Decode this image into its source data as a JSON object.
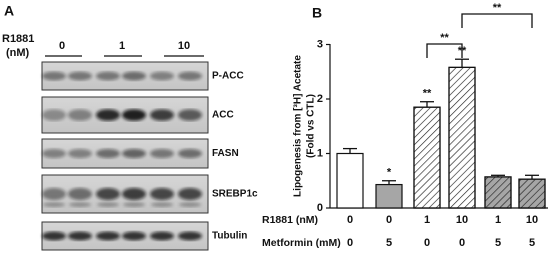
{
  "panel_a": {
    "label": "A",
    "treatment_label": [
      "R1881",
      "(nM)"
    ],
    "doses": [
      "0",
      "1",
      "10"
    ],
    "blots": [
      "P-ACC",
      "ACC",
      "FASN",
      "SREBP1c",
      "Tubulin"
    ]
  },
  "chart_data": {
    "type": "bar",
    "panel_label": "B",
    "ylabel": [
      "Lipogenesis from [³H] Acetate",
      "(Fold vs CTL)"
    ],
    "ylim": [
      0,
      3
    ],
    "yticks": [
      0,
      1,
      2,
      3
    ],
    "series": [
      {
        "values": [
          1.0,
          0.43,
          1.85,
          2.58,
          0.57,
          0.53
        ],
        "errors": [
          0.09,
          0.07,
          0.1,
          0.15,
          0.03,
          0.07
        ],
        "fills": [
          "#ffffff",
          "#a6a6a6",
          "#ffffff",
          "#ffffff",
          "#a6a6a6",
          "#a6a6a6"
        ],
        "hatched": [
          false,
          false,
          true,
          true,
          true,
          true
        ]
      }
    ],
    "star_labels": [
      null,
      "*",
      "**",
      "**",
      null,
      null
    ],
    "comparisons": [
      {
        "from": 2,
        "to": 3,
        "label": "**"
      },
      {
        "from": 3,
        "to": 5,
        "label": "**"
      }
    ],
    "table": {
      "rows": [
        {
          "label": "R1881 (nM)",
          "values": [
            0,
            0,
            1,
            10,
            1,
            10
          ]
        },
        {
          "label": "Metformin (mM)",
          "values": [
            0,
            5,
            0,
            0,
            5,
            5
          ]
        }
      ]
    }
  }
}
